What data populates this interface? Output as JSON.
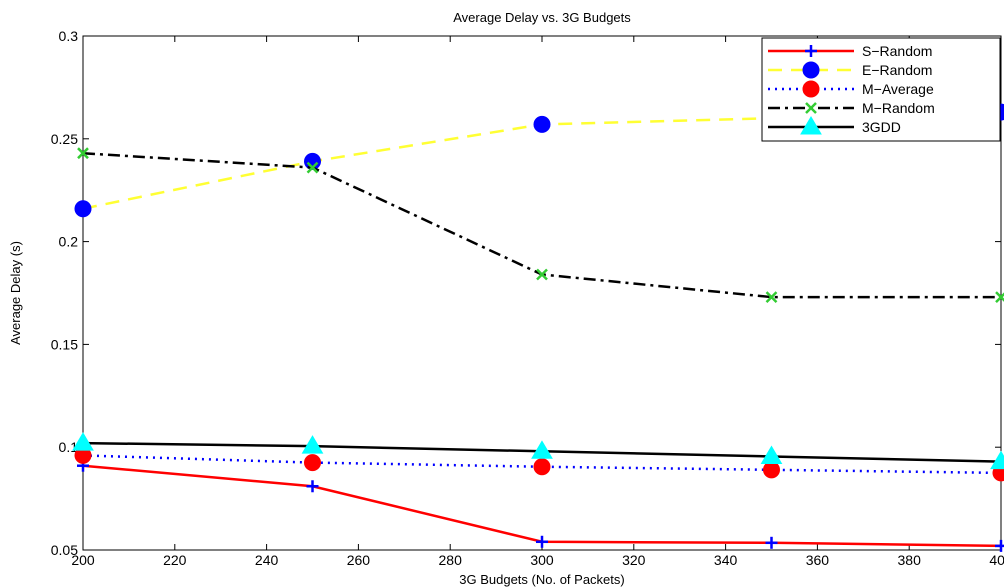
{
  "chart_data": {
    "type": "line",
    "title": "Average Delay vs. 3G Budgets",
    "xlabel": "3G Budgets (No. of Packets)",
    "ylabel": "Average Delay (s)",
    "xlim": [
      200,
      400
    ],
    "ylim": [
      0.05,
      0.3
    ],
    "xticks": [
      200,
      220,
      240,
      260,
      280,
      300,
      320,
      340,
      360,
      380,
      400
    ],
    "yticks": [
      0.05,
      0.1,
      0.15,
      0.2,
      0.25,
      0.3
    ],
    "xtick_labels": [
      "200",
      "220",
      "240",
      "260",
      "280",
      "300",
      "320",
      "340",
      "360",
      "380",
      "400"
    ],
    "ytick_labels": [
      "0.05",
      "0.1",
      "0.15",
      "0.2",
      "0.25",
      "0.3"
    ],
    "grid": false,
    "legend_position": "top-right",
    "x": [
      200,
      250,
      300,
      350,
      400
    ],
    "series": [
      {
        "name": "S−Random",
        "values": [
          0.091,
          0.081,
          0.054,
          0.0535,
          0.052
        ],
        "color": "#ff0000",
        "marker_color": "#0000ff",
        "marker": "plus",
        "dash": ""
      },
      {
        "name": "E−Random",
        "values": [
          0.216,
          0.239,
          0.257,
          0.26,
          0.263
        ],
        "color": "#ffff33",
        "marker_color": "#0000ff",
        "marker": "circle",
        "dash": "14,9"
      },
      {
        "name": "M−Average",
        "values": [
          0.096,
          0.0925,
          0.0905,
          0.089,
          0.0875
        ],
        "color": "#0000ff",
        "marker_color": "#ff0000",
        "marker": "circle",
        "dash": "2,5"
      },
      {
        "name": "M−Random",
        "values": [
          0.243,
          0.236,
          0.184,
          0.173,
          0.173
        ],
        "color": "#000000",
        "marker_color": "#33cc33",
        "marker": "x",
        "dash": "12,5,3,5"
      },
      {
        "name": "3GDD",
        "values": [
          0.102,
          0.1005,
          0.098,
          0.0955,
          0.093
        ],
        "color": "#000000",
        "marker_color": "#00ffff",
        "marker": "triangle",
        "dash": ""
      }
    ]
  }
}
